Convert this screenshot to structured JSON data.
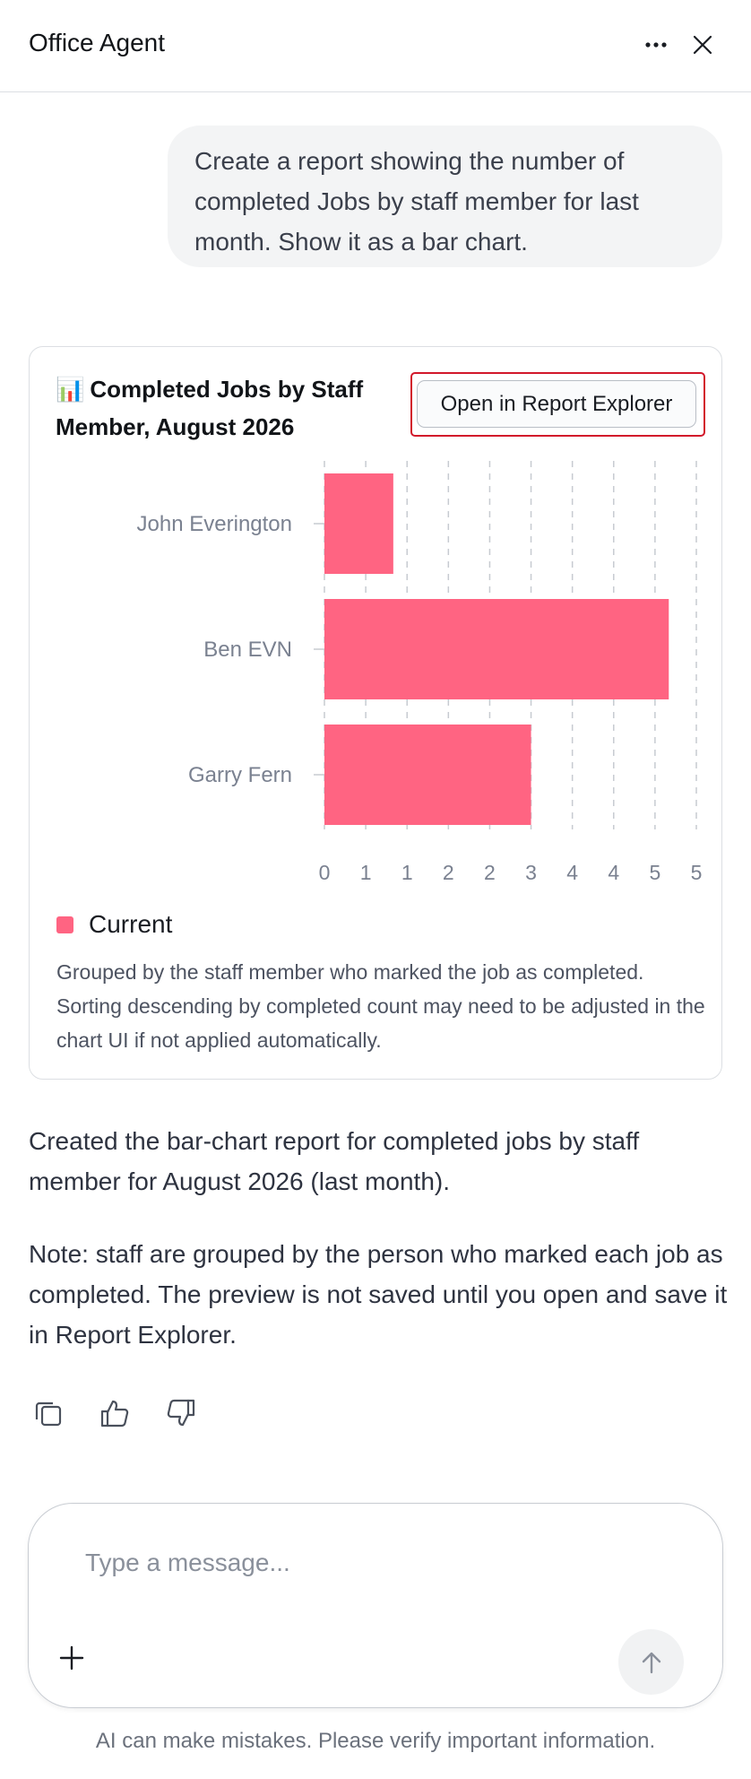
{
  "header": {
    "title": "Office Agent",
    "more_icon": "more-horizontal-icon",
    "close_icon": "close-icon"
  },
  "user_message": "Create a report showing the number of completed Jobs by staff member for last month. Show it as a bar chart.",
  "report_card": {
    "title_icon": "📊",
    "title": "Completed Jobs by Staff Member, August 2026",
    "open_button_label": "Open in Report Explorer",
    "legend_label": "Current",
    "note": "Grouped by the staff member who marked the job as completed. Sorting descending by completed count may need to be adjusted in the chart UI if not applied automatically."
  },
  "chart_data": {
    "type": "bar",
    "orientation": "horizontal",
    "categories": [
      "John Everington",
      "Ben EVN",
      "Garry Fern"
    ],
    "series": [
      {
        "name": "Current",
        "values": [
          1,
          5,
          3
        ]
      }
    ],
    "x_tick_labels": [
      "0",
      "1",
      "1",
      "2",
      "2",
      "3",
      "4",
      "4",
      "5",
      "5"
    ],
    "xlim": [
      0,
      5.4
    ],
    "grid": true,
    "legend_position": "bottom-left",
    "colors": {
      "bar": "#ff6482",
      "grid": "#c7cbd1",
      "axis_text": "#7a8190"
    }
  },
  "assistant": {
    "paragraph1": "Created the bar-chart report for completed jobs by staff member for August 2026 (last month).",
    "paragraph2": "Note: staff are grouped by the person who marked each job as completed. The preview is not saved until you open and save it in Report Explorer."
  },
  "feedback": {
    "copy_icon": "copy-icon",
    "like_icon": "thumbs-up-icon",
    "dislike_icon": "thumbs-down-icon"
  },
  "composer": {
    "placeholder": "Type a message...",
    "plus_icon": "plus-icon",
    "send_icon": "arrow-up-icon"
  },
  "disclaimer": "AI can make mistakes. Please verify important information.",
  "colors": {
    "accent_bar": "#ff6482",
    "highlight_border": "#d2182b"
  }
}
